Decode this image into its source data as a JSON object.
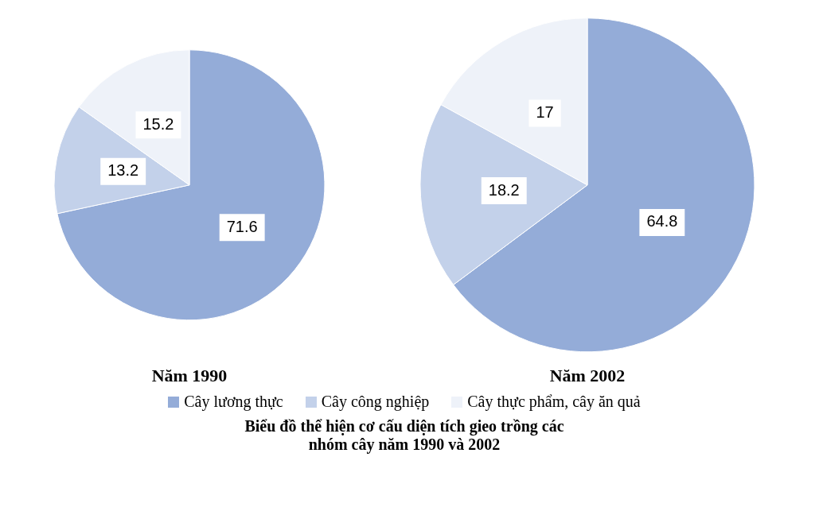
{
  "chart_data": [
    {
      "type": "pie",
      "title": "Năm 1990",
      "categories": [
        "Cây lương thực",
        "Cây công nghiệp",
        "Cây thực phẩm, cây ăn quả"
      ],
      "values": [
        71.6,
        13.2,
        15.2
      ],
      "colors": [
        "#94acd8",
        "#c3d1ea",
        "#eef2f9"
      ],
      "data_labels": true,
      "legend": "bottom",
      "annotations": [
        "Biểu đồ thể hiện cơ cấu diện tích gieo trồng các nhóm cây năm 1990 và 2002"
      ]
    },
    {
      "type": "pie",
      "title": "Năm 2002",
      "categories": [
        null,
        null,
        null
      ],
      "values": [
        64.8,
        18.2,
        17
      ],
      "colors": [
        "#94acd8",
        "#c3d1ea",
        "#eef2f9"
      ],
      "data_labels": true
    }
  ]
}
